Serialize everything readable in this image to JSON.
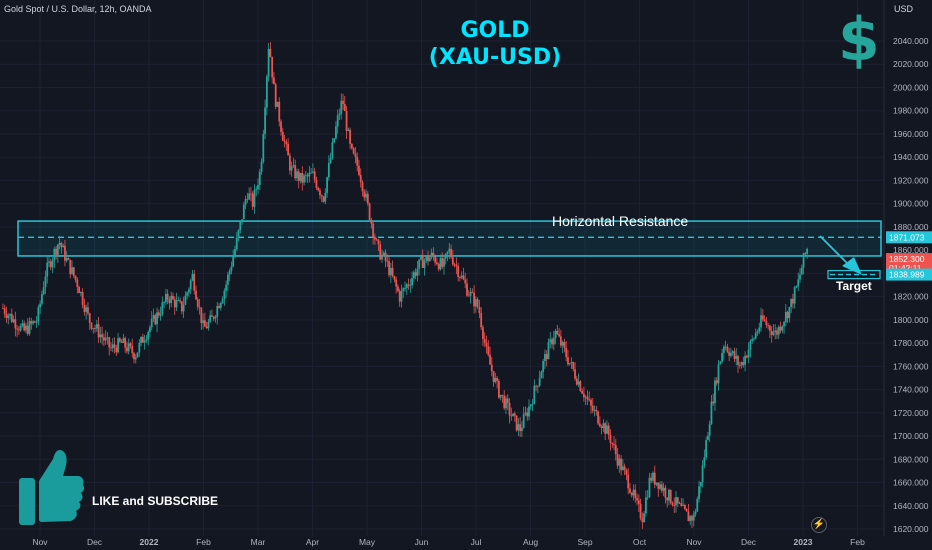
{
  "header": {
    "symbol_text": "Gold Spot / U.S. Dollar, 12h, OANDA",
    "currency": "USD"
  },
  "title": {
    "line1": "GOLD",
    "line2": "(XAU-USD)"
  },
  "annotations": {
    "resistance_label": "Horizontal Resistance",
    "target_label": "Target",
    "cta": "LIKE and SUBSCRIBE"
  },
  "icons": {
    "dollar_glyph": "$",
    "dollar_color": "#26a69a",
    "thumb_color": "#1a9c9c",
    "logo_glyph": "⚡"
  },
  "colors": {
    "background": "#131722",
    "up": "#26a69a",
    "down": "#ef5350",
    "accent": "#00e5ff",
    "text": "#d1d4dc"
  },
  "chart_data": {
    "type": "candlestick",
    "title": "GOLD (XAU-USD)",
    "timeframe": "12h",
    "source": "OANDA",
    "xlabel": "",
    "ylabel": "",
    "ylim": [
      1617,
      2066
    ],
    "y_ticks": [
      1620,
      1640,
      1660,
      1680,
      1700,
      1720,
      1740,
      1760,
      1780,
      1800,
      1820,
      1840,
      1860,
      1880,
      1900,
      1920,
      1940,
      1960,
      1980,
      2000,
      2020,
      2040
    ],
    "y_tick_labels": [
      "1620.000",
      "1640.000",
      "1660.000",
      "1680.000",
      "1700.000",
      "1720.000",
      "1740.000",
      "1760.000",
      "1780.000",
      "1800.000",
      "1820.000",
      "1840.000",
      "1860.000",
      "1880.000",
      "1900.000",
      "1920.000",
      "1940.000",
      "1960.000",
      "1980.000",
      "2000.000",
      "2020.000",
      "2040.000"
    ],
    "x_ticks": [
      {
        "label": "Nov",
        "t": 0.0
      },
      {
        "label": "Dec",
        "t": 1.0
      },
      {
        "label": "2022",
        "t": 2.0
      },
      {
        "label": "Feb",
        "t": 3.0
      },
      {
        "label": "Mar",
        "t": 4.0
      },
      {
        "label": "Apr",
        "t": 5.0
      },
      {
        "label": "May",
        "t": 6.0
      },
      {
        "label": "Jun",
        "t": 7.0
      },
      {
        "label": "Jul",
        "t": 8.0
      },
      {
        "label": "Aug",
        "t": 9.0
      },
      {
        "label": "Sep",
        "t": 10.0
      },
      {
        "label": "Oct",
        "t": 11.0
      },
      {
        "label": "Nov",
        "t": 12.0
      },
      {
        "label": "Dec",
        "t": 13.0
      },
      {
        "label": "2023",
        "t": 14.0
      },
      {
        "label": "Feb",
        "t": 15.0
      }
    ],
    "x_range": [
      -0.68,
      15.65
    ],
    "close_path": [
      [
        -0.68,
        1810
      ],
      [
        -0.3,
        1790
      ],
      [
        -0.05,
        1800
      ],
      [
        0.1,
        1840
      ],
      [
        0.35,
        1868
      ],
      [
        0.5,
        1850
      ],
      [
        0.7,
        1830
      ],
      [
        0.9,
        1800
      ],
      [
        1.1,
        1788
      ],
      [
        1.3,
        1775
      ],
      [
        1.5,
        1780
      ],
      [
        1.75,
        1770
      ],
      [
        1.9,
        1785
      ],
      [
        2.1,
        1800
      ],
      [
        2.35,
        1820
      ],
      [
        2.6,
        1810
      ],
      [
        2.8,
        1838
      ],
      [
        3.0,
        1792
      ],
      [
        3.15,
        1800
      ],
      [
        3.4,
        1828
      ],
      [
        3.6,
        1865
      ],
      [
        3.8,
        1910
      ],
      [
        3.9,
        1900
      ],
      [
        4.05,
        1930
      ],
      [
        4.2,
        2040
      ],
      [
        4.3,
        1995
      ],
      [
        4.45,
        1960
      ],
      [
        4.6,
        1930
      ],
      [
        4.8,
        1920
      ],
      [
        5.0,
        1925
      ],
      [
        5.2,
        1905
      ],
      [
        5.45,
        1970
      ],
      [
        5.55,
        1990
      ],
      [
        5.7,
        1945
      ],
      [
        5.85,
        1930
      ],
      [
        6.05,
        1890
      ],
      [
        6.2,
        1860
      ],
      [
        6.35,
        1850
      ],
      [
        6.6,
        1820
      ],
      [
        6.8,
        1835
      ],
      [
        7.0,
        1850
      ],
      [
        7.2,
        1855
      ],
      [
        7.4,
        1845
      ],
      [
        7.5,
        1860
      ],
      [
        7.7,
        1840
      ],
      [
        7.85,
        1825
      ],
      [
        8.05,
        1810
      ],
      [
        8.2,
        1770
      ],
      [
        8.4,
        1740
      ],
      [
        8.6,
        1722
      ],
      [
        8.8,
        1705
      ],
      [
        9.0,
        1728
      ],
      [
        9.25,
        1765
      ],
      [
        9.45,
        1790
      ],
      [
        9.7,
        1765
      ],
      [
        9.9,
        1745
      ],
      [
        10.1,
        1725
      ],
      [
        10.3,
        1712
      ],
      [
        10.45,
        1700
      ],
      [
        10.6,
        1680
      ],
      [
        10.8,
        1660
      ],
      [
        10.95,
        1640
      ],
      [
        11.05,
        1630
      ],
      [
        11.2,
        1665
      ],
      [
        11.35,
        1660
      ],
      [
        11.5,
        1650
      ],
      [
        11.7,
        1640
      ],
      [
        11.9,
        1630
      ],
      [
        12.0,
        1630
      ],
      [
        12.15,
        1670
      ],
      [
        12.3,
        1720
      ],
      [
        12.45,
        1760
      ],
      [
        12.55,
        1780
      ],
      [
        12.7,
        1770
      ],
      [
        12.85,
        1760
      ],
      [
        13.0,
        1775
      ],
      [
        13.25,
        1800
      ],
      [
        13.5,
        1788
      ],
      [
        13.75,
        1810
      ],
      [
        13.9,
        1830
      ],
      [
        14.0,
        1850
      ],
      [
        14.08,
        1862
      ]
    ],
    "horizontal_resistance": {
      "label": "Horizontal Resistance",
      "zone": [
        1855,
        1885
      ],
      "level": 1871.073,
      "extends_from": -0.68
    },
    "target": {
      "label": "Target",
      "level": 1838.989
    },
    "price_labels": [
      {
        "text": "1871.073",
        "value": 1871.073,
        "color": "#26c6da"
      },
      {
        "text": "1852.300",
        "value": 1852.3,
        "color": "#ef5350"
      },
      {
        "text": "01:42:11",
        "value": 1844.5,
        "color": "#ef5350"
      },
      {
        "text": "1838.989",
        "value": 1838.989,
        "color": "#26c6da"
      }
    ]
  }
}
